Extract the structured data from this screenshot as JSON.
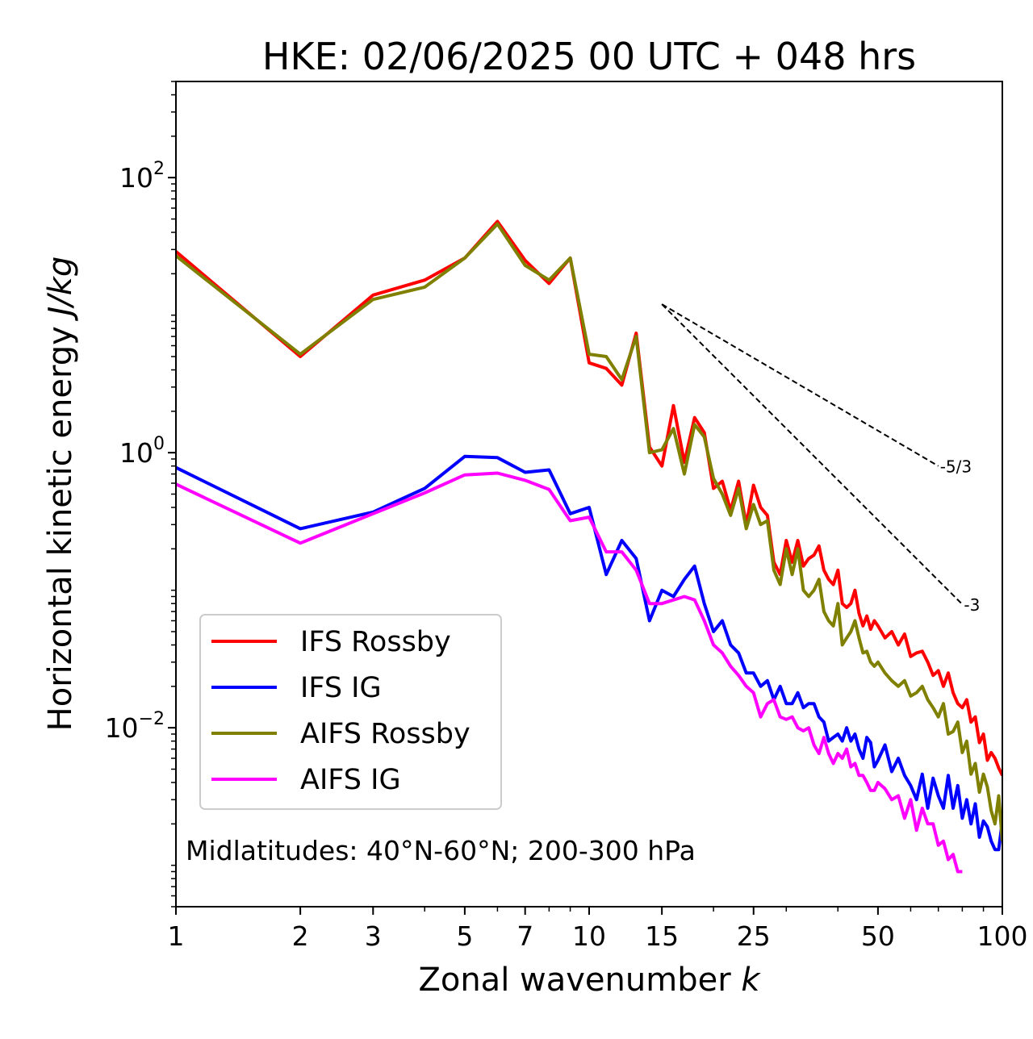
{
  "chart_data": {
    "type": "line",
    "title": "HKE: 02/06/2025 00 UTC + 048 hrs",
    "xlabel_text": "Zonal wavenumber ",
    "xlabel_var": "k",
    "ylabel_text": "Horizontal kinetic energy ",
    "ylabel_unit": "J/kg",
    "x_scale": "log",
    "y_scale": "log",
    "xlim": [
      1,
      100
    ],
    "ylim": [
      0.0005,
      500
    ],
    "x_ticks": [
      {
        "value": 1,
        "label": "1"
      },
      {
        "value": 2,
        "label": "2"
      },
      {
        "value": 3,
        "label": "3"
      },
      {
        "value": 5,
        "label": "5"
      },
      {
        "value": 7,
        "label": "7"
      },
      {
        "value": 10,
        "label": "10"
      },
      {
        "value": 15,
        "label": "15"
      },
      {
        "value": 25,
        "label": "25"
      },
      {
        "value": 50,
        "label": "50"
      },
      {
        "value": 100,
        "label": "100"
      }
    ],
    "y_ticks": [
      {
        "value": 100,
        "base": "10",
        "exp": "2"
      },
      {
        "value": 1,
        "base": "10",
        "exp": "0"
      },
      {
        "value": 0.01,
        "base": "10",
        "exp": "−2"
      }
    ],
    "annotation": "Midlatitudes: 40°N-60°N; 200-300 hPa",
    "legend_placement": "lower-left",
    "grid": false,
    "reference_lines": [
      {
        "label": "-5/3",
        "x": [
          15,
          70
        ],
        "y": [
          12.0,
          0.8
        ]
      },
      {
        "label": "-3",
        "x": [
          15,
          80
        ],
        "y": [
          12.0,
          0.079
        ]
      }
    ],
    "series": [
      {
        "name": "IFS Rossby",
        "color": "#ff0000",
        "x": [
          1,
          2,
          3,
          4,
          5,
          6,
          7,
          8,
          9,
          10,
          11,
          12,
          13,
          14,
          15,
          16,
          17,
          18,
          19,
          20,
          21,
          22,
          23,
          24,
          25,
          26,
          27,
          28,
          29,
          30,
          31,
          32,
          33,
          34,
          35,
          36,
          37,
          38,
          39,
          40,
          41,
          42,
          43,
          44,
          45,
          46,
          47,
          48,
          49,
          50,
          52,
          54,
          56,
          58,
          60,
          62,
          64,
          66,
          68,
          70,
          72,
          74,
          76,
          78,
          80,
          82,
          84,
          86,
          88,
          90,
          92,
          94,
          96,
          98,
          100
        ],
        "y": [
          29,
          5.0,
          14,
          18,
          26,
          48,
          25,
          17,
          26,
          4.5,
          4.1,
          3.1,
          7.4,
          1.1,
          0.8,
          2.2,
          0.85,
          1.8,
          1.4,
          0.55,
          0.62,
          0.38,
          0.62,
          0.3,
          0.58,
          0.4,
          0.35,
          0.16,
          0.13,
          0.23,
          0.16,
          0.23,
          0.15,
          0.17,
          0.18,
          0.21,
          0.14,
          0.12,
          0.11,
          0.14,
          0.08,
          0.075,
          0.08,
          0.1,
          0.068,
          0.055,
          0.065,
          0.052,
          0.06,
          0.055,
          0.045,
          0.05,
          0.04,
          0.048,
          0.033,
          0.035,
          0.036,
          0.03,
          0.024,
          0.026,
          0.02,
          0.025,
          0.018,
          0.015,
          0.014,
          0.016,
          0.011,
          0.012,
          0.0078,
          0.009,
          0.0058,
          0.0066,
          0.006,
          0.0051,
          0.0045
        ]
      },
      {
        "name": "IFS IG",
        "color": "#0000ff",
        "x": [
          1,
          2,
          3,
          4,
          5,
          6,
          7,
          8,
          9,
          10,
          11,
          12,
          13,
          14,
          15,
          16,
          17,
          18,
          19,
          20,
          21,
          22,
          23,
          24,
          25,
          26,
          27,
          28,
          29,
          30,
          31,
          32,
          33,
          34,
          35,
          36,
          37,
          38,
          39,
          40,
          41,
          42,
          43,
          44,
          45,
          46,
          47,
          48,
          49,
          50,
          52,
          54,
          56,
          58,
          60,
          62,
          64,
          66,
          68,
          70,
          72,
          74,
          76,
          78,
          80,
          82,
          84,
          86,
          88,
          90,
          92,
          94,
          96,
          98,
          100
        ],
        "y": [
          0.78,
          0.28,
          0.37,
          0.55,
          0.94,
          0.92,
          0.72,
          0.75,
          0.36,
          0.4,
          0.13,
          0.23,
          0.17,
          0.06,
          0.1,
          0.09,
          0.12,
          0.15,
          0.08,
          0.05,
          0.06,
          0.04,
          0.035,
          0.025,
          0.025,
          0.02,
          0.022,
          0.016,
          0.02,
          0.015,
          0.015,
          0.018,
          0.014,
          0.015,
          0.015,
          0.012,
          0.011,
          0.008,
          0.0085,
          0.009,
          0.008,
          0.01,
          0.008,
          0.009,
          0.007,
          0.006,
          0.0085,
          0.0078,
          0.0052,
          0.0058,
          0.0075,
          0.0048,
          0.006,
          0.0045,
          0.0038,
          0.003,
          0.0046,
          0.0026,
          0.0043,
          0.0032,
          0.0026,
          0.0045,
          0.0026,
          0.0038,
          0.0022,
          0.003,
          0.002,
          0.0028,
          0.0016,
          0.0021,
          0.0019,
          0.0015,
          0.0013,
          0.0013,
          0.0021
        ]
      },
      {
        "name": "AIFS Rossby",
        "color": "#808000",
        "x": [
          1,
          2,
          3,
          4,
          5,
          6,
          7,
          8,
          9,
          10,
          11,
          12,
          13,
          14,
          15,
          16,
          17,
          18,
          19,
          20,
          21,
          22,
          23,
          24,
          25,
          26,
          27,
          28,
          29,
          30,
          31,
          32,
          33,
          34,
          35,
          36,
          37,
          38,
          39,
          40,
          41,
          42,
          43,
          44,
          45,
          46,
          47,
          48,
          49,
          50,
          52,
          54,
          56,
          58,
          60,
          62,
          64,
          66,
          68,
          70,
          72,
          74,
          76,
          78,
          80,
          82,
          84,
          86,
          88,
          90,
          92,
          94,
          96,
          98,
          100
        ],
        "y": [
          27,
          5.2,
          13,
          16,
          26,
          46,
          23,
          18,
          26,
          5.2,
          5.0,
          3.4,
          7.0,
          1.0,
          1.05,
          1.5,
          0.7,
          1.6,
          1.3,
          0.65,
          0.5,
          0.35,
          0.55,
          0.28,
          0.42,
          0.3,
          0.32,
          0.14,
          0.11,
          0.2,
          0.13,
          0.2,
          0.1,
          0.09,
          0.1,
          0.12,
          0.07,
          0.06,
          0.055,
          0.08,
          0.04,
          0.045,
          0.05,
          0.06,
          0.045,
          0.035,
          0.036,
          0.03,
          0.028,
          0.03,
          0.025,
          0.022,
          0.02,
          0.022,
          0.017,
          0.018,
          0.02,
          0.016,
          0.014,
          0.012,
          0.015,
          0.009,
          0.0094,
          0.011,
          0.0066,
          0.008,
          0.0046,
          0.0055,
          0.0034,
          0.0046,
          0.0037,
          0.0025,
          0.002,
          0.0032,
          0.0015
        ]
      },
      {
        "name": "AIFS IG",
        "color": "#ff00ff",
        "x": [
          1,
          2,
          3,
          4,
          5,
          6,
          7,
          8,
          9,
          10,
          11,
          12,
          13,
          14,
          15,
          16,
          17,
          18,
          19,
          20,
          21,
          22,
          23,
          24,
          25,
          26,
          27,
          28,
          29,
          30,
          31,
          32,
          33,
          34,
          35,
          36,
          37,
          38,
          39,
          40,
          41,
          42,
          43,
          44,
          45,
          46,
          47,
          48,
          49,
          50,
          52,
          54,
          56,
          58,
          60,
          62,
          64,
          66,
          68,
          70,
          72,
          74,
          76,
          78,
          80
        ],
        "y": [
          0.59,
          0.22,
          0.36,
          0.51,
          0.69,
          0.71,
          0.63,
          0.54,
          0.32,
          0.34,
          0.19,
          0.19,
          0.14,
          0.08,
          0.08,
          0.085,
          0.09,
          0.085,
          0.06,
          0.04,
          0.035,
          0.028,
          0.024,
          0.02,
          0.018,
          0.012,
          0.015,
          0.016,
          0.012,
          0.0115,
          0.012,
          0.01,
          0.0095,
          0.01,
          0.0075,
          0.0065,
          0.0085,
          0.0065,
          0.0055,
          0.0065,
          0.006,
          0.007,
          0.0052,
          0.0055,
          0.0045,
          0.0045,
          0.004,
          0.0035,
          0.0035,
          0.004,
          0.0036,
          0.003,
          0.0032,
          0.0022,
          0.003,
          0.0018,
          0.0026,
          0.002,
          0.002,
          0.0014,
          0.0015,
          0.0011,
          0.0012,
          0.0009,
          0.0009
        ]
      }
    ]
  }
}
